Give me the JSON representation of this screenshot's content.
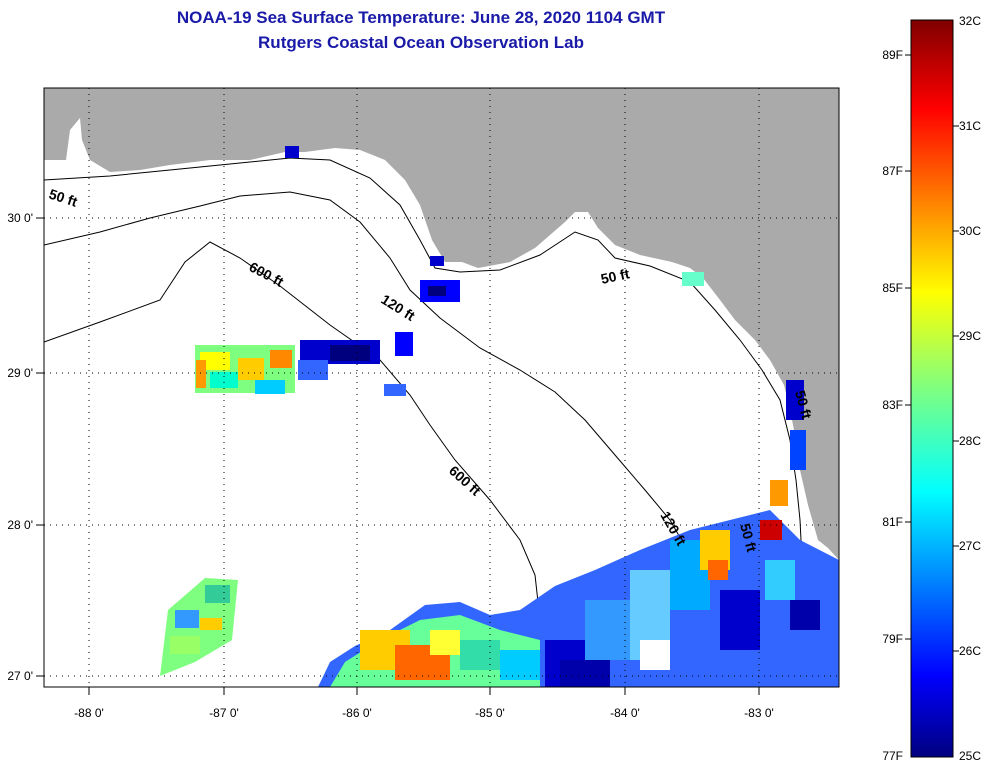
{
  "title": {
    "line1": "NOAA-19 Sea Surface Temperature:  June 28, 2020 1104 GMT",
    "line2": "Rutgers Coastal Ocean Observation Lab"
  },
  "map": {
    "lon_ticks": [
      "-88 0'",
      "-87 0'",
      "-86 0'",
      "-85 0'",
      "-84 0'",
      "-83 0'"
    ],
    "lat_ticks": [
      "30 0'",
      "29 0'",
      "28 0'",
      "27 0'"
    ],
    "isobath_labels": [
      "50 ft",
      "600 ft",
      "120 ft",
      "50 ft",
      "600 ft",
      "120 ft",
      "50 ft",
      "50 ft"
    ],
    "colors": {
      "land": "#aaaaaa",
      "ocean": "#ffffff",
      "frame": "#000000"
    }
  },
  "colorbar": {
    "celsius_labels": [
      "32C",
      "31C",
      "30C",
      "29C",
      "28C",
      "27C",
      "26C",
      "25C"
    ],
    "fahrenheit_labels": [
      "89F",
      "87F",
      "85F",
      "83F",
      "81F",
      "79F",
      "77F"
    ],
    "range_c": [
      25,
      32
    ]
  }
}
